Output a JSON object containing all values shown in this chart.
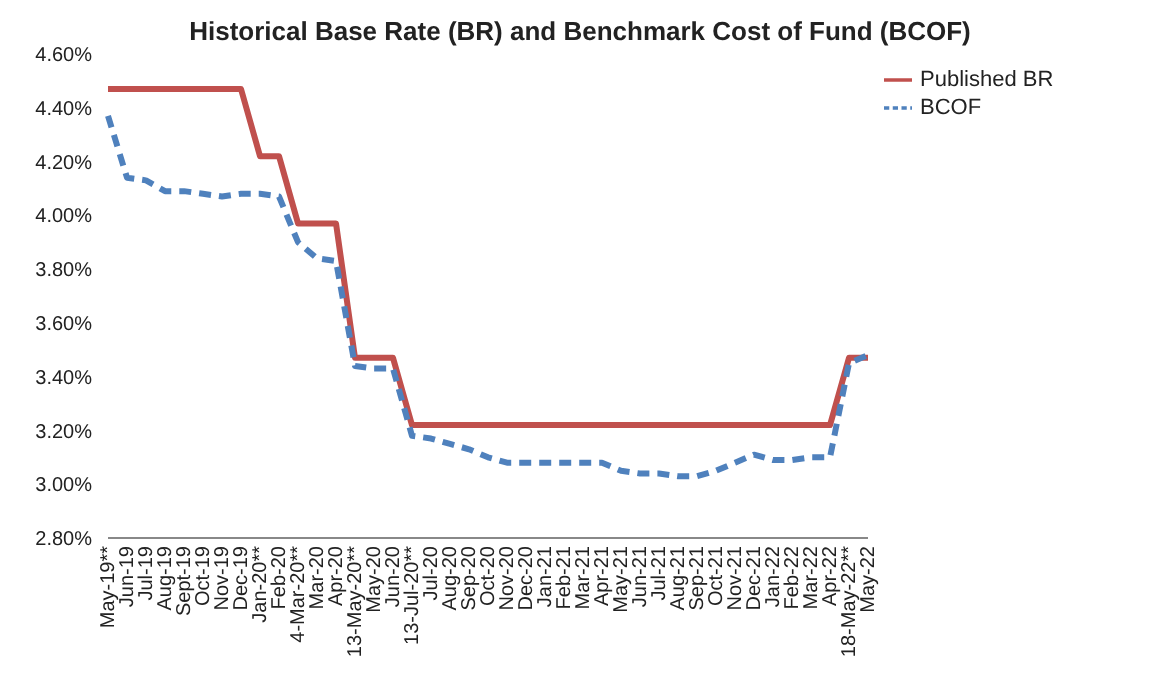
{
  "chart_data": {
    "type": "line",
    "title": "Historical Base Rate (BR) and Benchmark Cost of Fund (BCOF)",
    "categories": [
      "May-19**",
      "Jun-19",
      "Jul-19",
      "Aug-19",
      "Sept-19",
      "Oct-19",
      "Nov-19",
      "Dec-19",
      "Jan-20**",
      "Feb-20",
      "4-Mar-20**",
      "Mar-20",
      "Apr-20",
      "13-May-20**",
      "May-20",
      "Jun-20",
      "13-Jul-20**",
      "Jul-20",
      "Aug-20",
      "Sep-20",
      "Oct-20",
      "Nov-20",
      "Dec-20",
      "Jan-21",
      "Feb-21",
      "Mar-21",
      "Apr-21",
      "May-21",
      "Jun-21",
      "Jul-21",
      "Aug-21",
      "Sep-21",
      "Oct-21",
      "Nov-21",
      "Dec-21",
      "Jan-22",
      "Feb-22",
      "Mar-22",
      "Apr-22",
      "18-May-22**",
      "May-22"
    ],
    "series": [
      {
        "name": "Published BR",
        "color": "#c0504d",
        "line_style": "solid",
        "values": [
          4.47,
          4.47,
          4.47,
          4.47,
          4.47,
          4.47,
          4.47,
          4.47,
          4.22,
          4.22,
          3.97,
          3.97,
          3.97,
          3.47,
          3.47,
          3.47,
          3.22,
          3.22,
          3.22,
          3.22,
          3.22,
          3.22,
          3.22,
          3.22,
          3.22,
          3.22,
          3.22,
          3.22,
          3.22,
          3.22,
          3.22,
          3.22,
          3.22,
          3.22,
          3.22,
          3.22,
          3.22,
          3.22,
          3.22,
          3.47,
          3.47
        ]
      },
      {
        "name": "BCOF",
        "color": "#4f81bd",
        "line_style": "dashed",
        "values": [
          4.37,
          4.14,
          4.13,
          4.09,
          4.09,
          4.08,
          4.07,
          4.08,
          4.08,
          4.07,
          3.9,
          3.84,
          3.83,
          3.44,
          3.43,
          3.43,
          3.18,
          3.17,
          3.15,
          3.13,
          3.1,
          3.08,
          3.08,
          3.08,
          3.08,
          3.08,
          3.08,
          3.05,
          3.04,
          3.04,
          3.03,
          3.03,
          3.05,
          3.08,
          3.11,
          3.09,
          3.09,
          3.1,
          3.1,
          3.45,
          3.48
        ]
      }
    ],
    "ylim": [
      2.8,
      4.6
    ],
    "yticks": [
      {
        "value": 2.8,
        "label": "2.80%"
      },
      {
        "value": 3.0,
        "label": "3.00%"
      },
      {
        "value": 3.2,
        "label": "3.20%"
      },
      {
        "value": 3.4,
        "label": "3.40%"
      },
      {
        "value": 3.6,
        "label": "3.60%"
      },
      {
        "value": 3.8,
        "label": "3.80%"
      },
      {
        "value": 4.0,
        "label": "4.00%"
      },
      {
        "value": 4.2,
        "label": "4.20%"
      },
      {
        "value": 4.4,
        "label": "4.40%"
      },
      {
        "value": 4.6,
        "label": "4.60%"
      }
    ],
    "grid": false,
    "legend": "top right",
    "marker": "none"
  }
}
